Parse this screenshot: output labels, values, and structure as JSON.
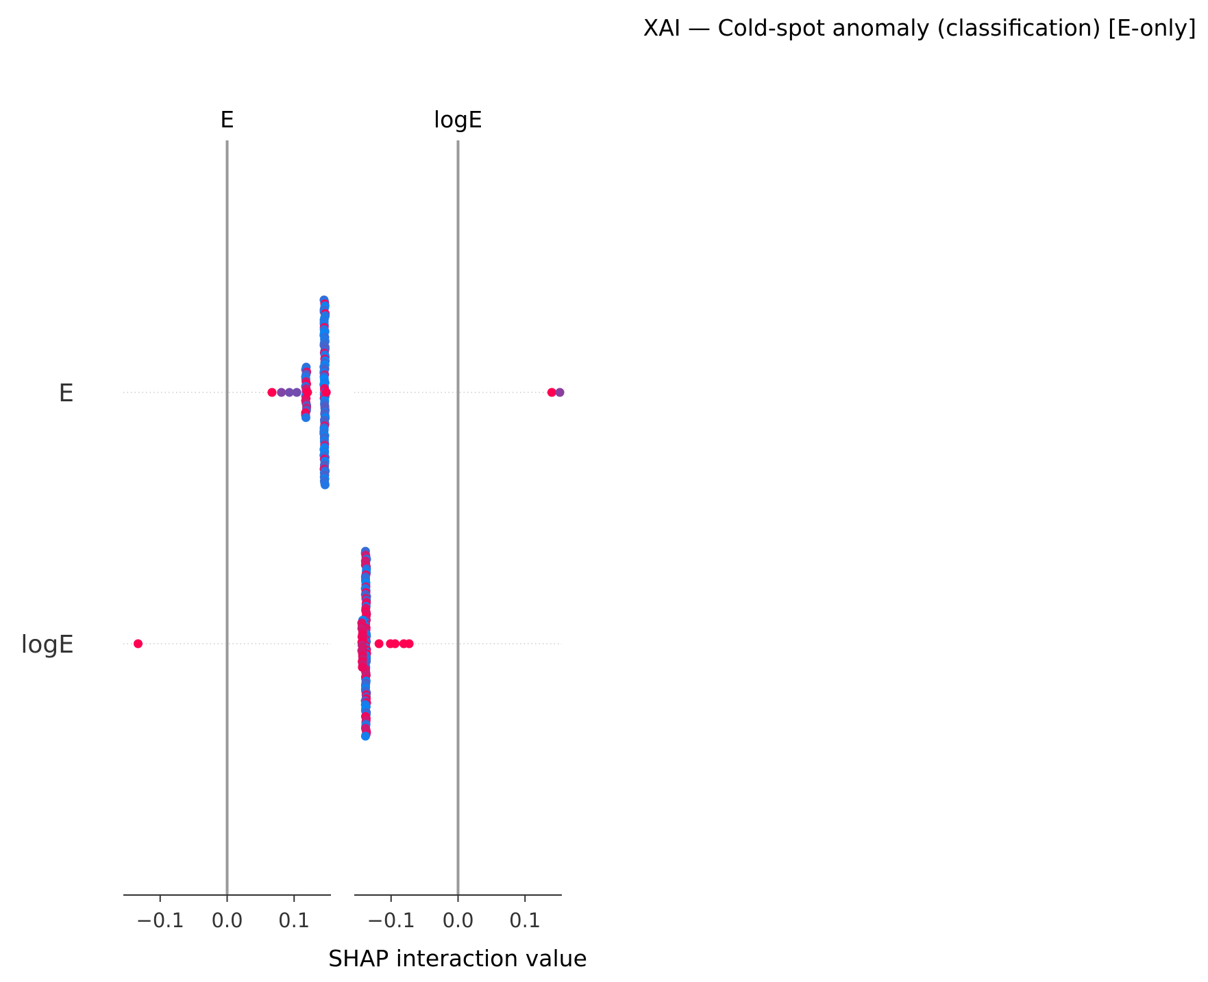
{
  "chart_data": {
    "type": "scatter",
    "title": "XAI — Cold-spot anomaly (classification) [E-only]",
    "xlabel": "SHAP interaction value",
    "features": [
      "E",
      "logE"
    ],
    "panel_titles": [
      "E",
      "logE"
    ],
    "row_labels": [
      "E",
      "logE"
    ],
    "xlim": [
      -0.155,
      0.155
    ],
    "xticks": [
      -0.1,
      0.0,
      0.1
    ],
    "xtick_labels": [
      "−0.1",
      "0.0",
      "0.1"
    ],
    "colormap": {
      "low": "#008afb",
      "high": "#ff0052"
    },
    "cells": [
      {
        "column": "E",
        "row": "E",
        "clusters": [
          {
            "x": 0.1455,
            "n": 95,
            "spread": 0.55,
            "color_mix": 0.12
          },
          {
            "x": 0.118,
            "n": 22,
            "spread": 0.15,
            "color_mix": 0.6
          }
        ],
        "points": [
          {
            "x": 0.067,
            "c": 1.0
          },
          {
            "x": 0.081,
            "c": 0.5
          },
          {
            "x": 0.093,
            "c": 0.45
          },
          {
            "x": 0.104,
            "c": 0.45
          },
          {
            "x": 0.12,
            "c": 1.0
          },
          {
            "x": 0.148,
            "c": 1.0
          }
        ]
      },
      {
        "column": "logE",
        "row": "E",
        "clusters": [],
        "points": [
          {
            "x": 0.14,
            "c": 1.0
          },
          {
            "x": 0.152,
            "c": 0.55
          }
        ]
      },
      {
        "column": "E",
        "row": "logE",
        "clusters": [],
        "points": [
          {
            "x": -0.133,
            "c": 1.0
          }
        ]
      },
      {
        "column": "logE",
        "row": "logE",
        "clusters": [
          {
            "x": -0.1375,
            "n": 95,
            "spread": 0.55,
            "color_mix": 0.45
          },
          {
            "x": -0.143,
            "n": 18,
            "spread": 0.14,
            "color_mix": 0.95
          }
        ],
        "points": [
          {
            "x": -0.118,
            "c": 1.0
          },
          {
            "x": -0.101,
            "c": 1.0
          },
          {
            "x": -0.094,
            "c": 1.0
          },
          {
            "x": -0.081,
            "c": 1.0
          },
          {
            "x": -0.073,
            "c": 1.0
          }
        ]
      }
    ]
  }
}
